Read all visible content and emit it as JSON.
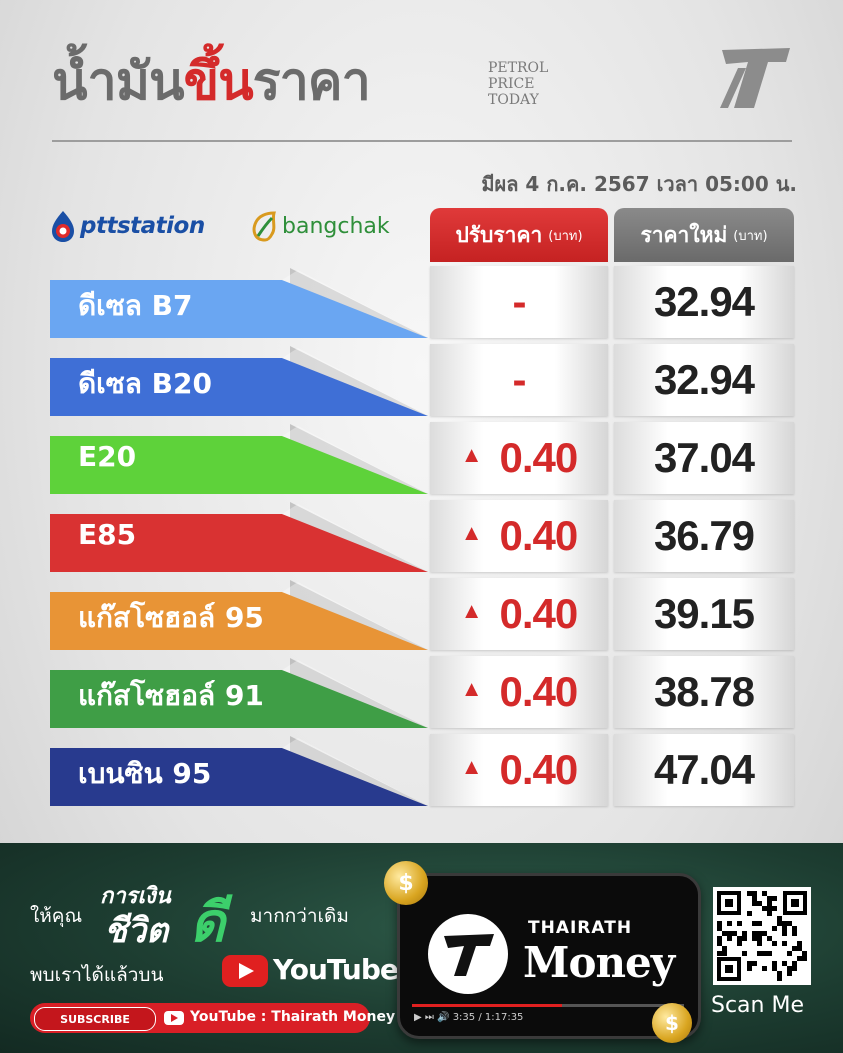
{
  "header": {
    "title_part1": "น้ำมัน",
    "title_part2": "ขึ้น",
    "title_part3": "ราคา",
    "subtitle_lines": [
      "PETROL",
      "PRICE",
      "TODAY"
    ],
    "effective_text": "มีผล 4 ก.ค. 2567 เวลา 05:00 น."
  },
  "brands": {
    "ptt": "pttstation",
    "bangchak": "bangchak"
  },
  "columns": {
    "adjust_label": "ปรับราคา",
    "adjust_unit": "(บาท)",
    "new_label": "ราคาใหม่",
    "new_unit": "(บาท)"
  },
  "fuels": [
    {
      "name": "ดีเซล B7",
      "adjust": "-",
      "adjust_up": false,
      "price": "32.94",
      "color": "#6aa6f2"
    },
    {
      "name": "ดีเซล B20",
      "adjust": "-",
      "adjust_up": false,
      "price": "32.94",
      "color": "#3f6fd6"
    },
    {
      "name": "E20",
      "adjust": "0.40",
      "adjust_up": true,
      "price": "37.04",
      "color": "#5ed23a"
    },
    {
      "name": "E85",
      "adjust": "0.40",
      "adjust_up": true,
      "price": "36.79",
      "color": "#d93232"
    },
    {
      "name": "แก๊สโซฮอล์ 95",
      "adjust": "0.40",
      "adjust_up": true,
      "price": "39.15",
      "color": "#e89436"
    },
    {
      "name": "แก๊สโซฮอล์ 91",
      "adjust": "0.40",
      "adjust_up": true,
      "price": "38.78",
      "color": "#3f9e46"
    },
    {
      "name": "เบนซิน 95",
      "adjust": "0.40",
      "adjust_up": true,
      "price": "47.04",
      "color": "#283a8e"
    }
  ],
  "footer": {
    "give_text": "ให้คุณ",
    "brand_line1": "การเงิน",
    "brand_line2": "ชีวิต",
    "brand_line3": "ดี",
    "more_text": "มากกว่าเดิม",
    "meet_text": "พบเราได้แล้วบน",
    "youtube_word": "YouTube",
    "subscribe_label": "SUBSCRIBE",
    "channel_label": "YouTube : Thairath Money",
    "phone_small": "THAIRATH",
    "phone_big": "Money",
    "phone_time": "3:35 / 1:17:35",
    "scan_label": "Scan Me",
    "coin_symbol": "$"
  },
  "colors": {
    "accent_red": "#d42a2a",
    "header_gray": "#6b6b6b",
    "footer_green": "#1d3d31"
  }
}
